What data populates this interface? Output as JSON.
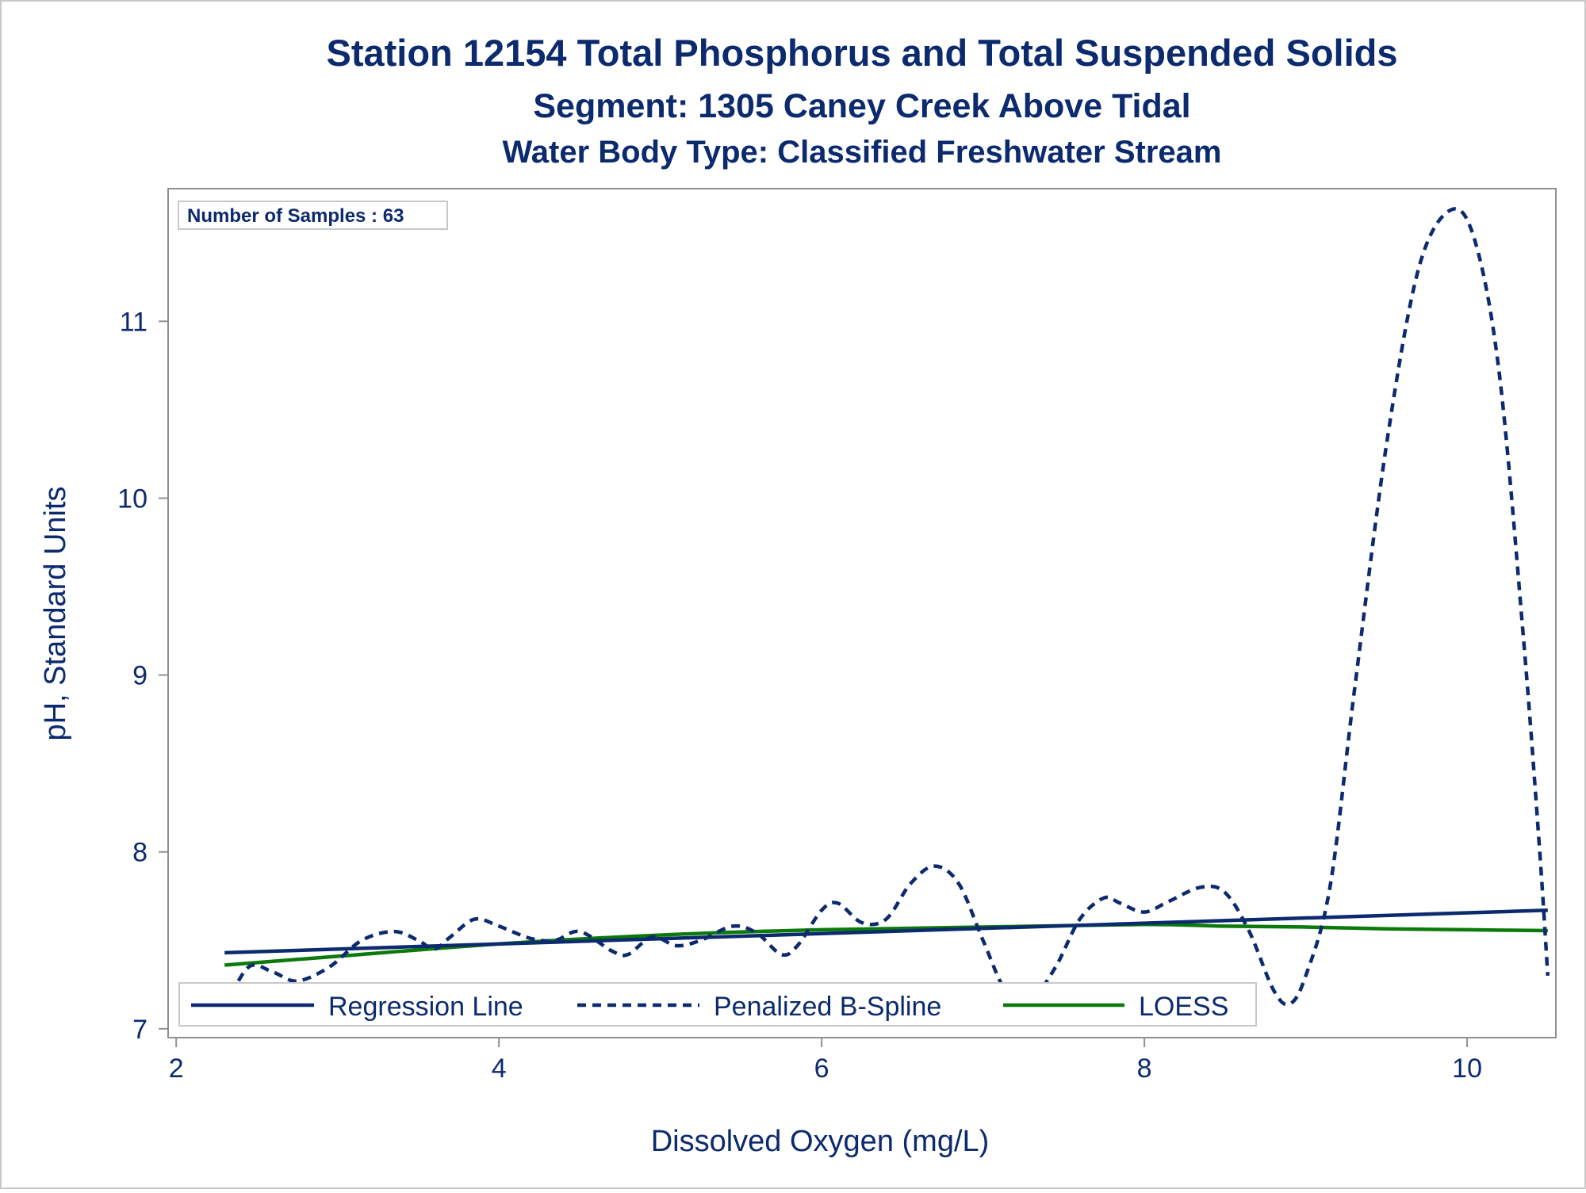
{
  "chart_data": {
    "type": "line",
    "title": "Station 12154  Total Phosphorus and Total Suspended Solids",
    "subtitle": "Segment: 1305  Caney Creek Above Tidal",
    "subtitle2": "Water Body Type: Classified Freshwater Stream",
    "xlabel": "Dissolved Oxygen (mg/L)",
    "ylabel": "pH, Standard Units",
    "xlim": [
      1.95,
      10.55
    ],
    "ylim": [
      6.95,
      11.75
    ],
    "xticks": [
      2,
      4,
      6,
      8,
      10
    ],
    "yticks": [
      7,
      8,
      9,
      10,
      11
    ],
    "grid": false,
    "inset_label": "Number of Samples : 63",
    "legend_position": "bottom-inside",
    "series": [
      {
        "name": "Regression Line",
        "style": "solid",
        "color": "#0c2a6e",
        "points": [
          [
            2.3,
            7.43
          ],
          [
            10.5,
            7.67
          ]
        ]
      },
      {
        "name": "Penalized B-Spline",
        "style": "dashed",
        "color": "#0c2a6e",
        "points": [
          [
            2.3,
            7.12
          ],
          [
            2.45,
            7.35
          ],
          [
            2.6,
            7.32
          ],
          [
            2.75,
            7.27
          ],
          [
            2.95,
            7.35
          ],
          [
            3.15,
            7.5
          ],
          [
            3.35,
            7.55
          ],
          [
            3.5,
            7.5
          ],
          [
            3.6,
            7.45
          ],
          [
            3.7,
            7.52
          ],
          [
            3.85,
            7.62
          ],
          [
            4.0,
            7.58
          ],
          [
            4.2,
            7.51
          ],
          [
            4.35,
            7.5
          ],
          [
            4.5,
            7.55
          ],
          [
            4.7,
            7.44
          ],
          [
            4.8,
            7.42
          ],
          [
            4.95,
            7.52
          ],
          [
            5.1,
            7.47
          ],
          [
            5.25,
            7.5
          ],
          [
            5.45,
            7.58
          ],
          [
            5.6,
            7.54
          ],
          [
            5.75,
            7.42
          ],
          [
            5.85,
            7.47
          ],
          [
            6.0,
            7.67
          ],
          [
            6.1,
            7.71
          ],
          [
            6.25,
            7.6
          ],
          [
            6.4,
            7.62
          ],
          [
            6.55,
            7.82
          ],
          [
            6.7,
            7.92
          ],
          [
            6.85,
            7.82
          ],
          [
            7.0,
            7.5
          ],
          [
            7.15,
            7.2
          ],
          [
            7.3,
            7.17
          ],
          [
            7.45,
            7.35
          ],
          [
            7.6,
            7.62
          ],
          [
            7.75,
            7.74
          ],
          [
            7.85,
            7.71
          ],
          [
            8.0,
            7.66
          ],
          [
            8.15,
            7.72
          ],
          [
            8.35,
            7.8
          ],
          [
            8.5,
            7.77
          ],
          [
            8.65,
            7.55
          ],
          [
            8.8,
            7.22
          ],
          [
            8.9,
            7.14
          ],
          [
            9.0,
            7.3
          ],
          [
            9.15,
            7.8
          ],
          [
            9.3,
            8.9
          ],
          [
            9.5,
            10.3
          ],
          [
            9.7,
            11.3
          ],
          [
            9.9,
            11.63
          ],
          [
            10.05,
            11.45
          ],
          [
            10.2,
            10.7
          ],
          [
            10.35,
            9.2
          ],
          [
            10.45,
            8.0
          ],
          [
            10.5,
            7.3
          ]
        ]
      },
      {
        "name": "LOESS",
        "style": "solid",
        "color": "#0b7a0b",
        "points": [
          [
            2.3,
            7.36
          ],
          [
            3.0,
            7.41
          ],
          [
            4.0,
            7.48
          ],
          [
            5.0,
            7.53
          ],
          [
            6.0,
            7.56
          ],
          [
            7.0,
            7.575
          ],
          [
            8.0,
            7.59
          ],
          [
            8.5,
            7.58
          ],
          [
            9.0,
            7.575
          ],
          [
            9.5,
            7.565
          ],
          [
            10.0,
            7.56
          ],
          [
            10.5,
            7.555
          ]
        ]
      }
    ]
  }
}
